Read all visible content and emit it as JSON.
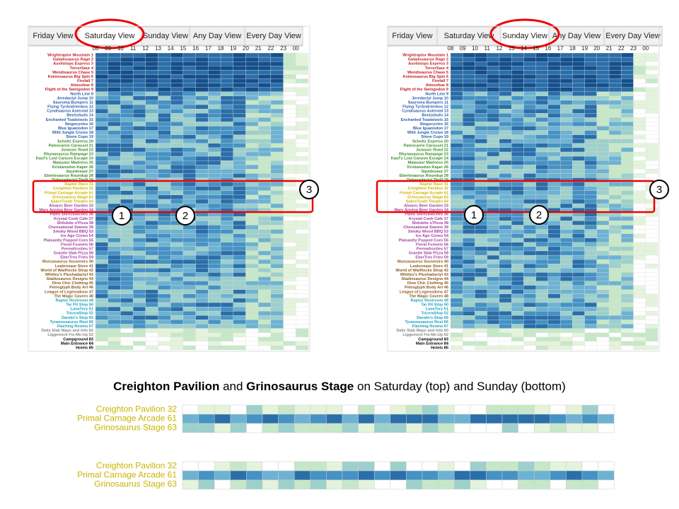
{
  "tabs": [
    "Friday View",
    "Saturday View",
    "Sunday View",
    "Any Day View",
    "Every Day View"
  ],
  "hours": [
    "08",
    "09",
    "10",
    "11",
    "12",
    "13",
    "14",
    "15",
    "16",
    "17",
    "18",
    "19",
    "20",
    "21",
    "22",
    "23",
    "00"
  ],
  "groups": [
    {
      "color": "#c0202a",
      "rows": [
        "Wrightraptor Mountain 1",
        "Galadosaurus Rage 2",
        "Auvilotops Express 3",
        "TerrorSaur 4",
        "Wendisaurus Chase 5",
        "Keimosaurus Big Spin 6",
        "Firefall 7",
        "Atmosfear 8",
        "Flight of the Swingodon 9"
      ]
    },
    {
      "color": "#2a5caa",
      "rows": [
        "North Line 9",
        "Jeredactyl Jump 10",
        "Sauroma Bumpers 11",
        "Flying TyrAndrienkos 12",
        "Cyndisaurus Asteroid 13",
        "Beelzebufo 14",
        "Enchanted Toadstools 15",
        "Stegocycles 16",
        "Blue Iguanodon 17",
        "Wild Jungle Cruise 18",
        "Stone Cups 19"
      ]
    },
    {
      "color": "#3a8a2a",
      "rows": [
        "Scholtz Express 20",
        "Paleocarrie Carousel 21",
        "Jurassic Road 22",
        "Rhynasaurus Rampage 23",
        "Kauf's Lost Canyon Escape 24",
        "Maiasaur Madness 25",
        "Kristanodon Kaper 26",
        "Squidosaur 27",
        "Eberlesaurus Roundup 28",
        "Dykesadactyl Thrill 29"
      ]
    },
    {
      "color": "#c8b400",
      "rows": [
        "Raptor Race 31",
        "Creighton Pavilion 32",
        "Primal Carnage Arcade 61",
        "Grinosaurus Stage 63",
        "SabreTooth Theatre 64"
      ]
    },
    {
      "color": "#a040a0",
      "rows": [
        "Alvarez Beer Garden 33",
        "Mary Anning Beer Garden 34",
        "Paleo Shreckwiches 36",
        "Krystal Cook Cafe 37",
        "Shilobite o'Pizza 38",
        "Chensational Sweets 39",
        "Smoky Wood BBQ 53",
        "Ice Age Cones 54",
        "Plaisantly Popped Corn 55",
        "Floral Funnels 56",
        "Permafrosties 57",
        "Granite Slab Pizza 58",
        "EberTrex Fries 59"
      ]
    },
    {
      "color": "#8a5a20",
      "rows": [
        "Munzasaurus Souvenirs 40",
        "Leabrosaur Store 41",
        "World of WarRocks Shop 42",
        "Whitley's Plushadactyl 43",
        "Stadiosaurus Designs 44",
        "Dino Chic Clothing 45",
        "Petroglyph Body Art 46",
        "League of Legenodons 47",
        "The Magic Cavern 48"
      ]
    },
    {
      "color": "#1aa0c0",
      "rows": [
        "Raptor Restroom 49",
        "Tar Pit Stop 50",
        "LavaTory 51",
        "TriceraStop 52",
        "Darwin's Stop 65",
        "Tyrannosaurus Rest 66",
        "Flaching Rooms 67"
      ]
    },
    {
      "color": "#888888",
      "rows": [
        "Daily Slab Maps and Info 60",
        "Liggement Fix-Me-Up 62"
      ]
    },
    {
      "color": "#000000",
      "rows": [
        "Campground 83",
        "Main Entrance 84",
        "Hotels 85"
      ]
    }
  ],
  "callouts": [
    "1",
    "2",
    "3"
  ],
  "caption": {
    "bold1": "Creighton Pavilion",
    "text1": " and ",
    "bold2": "Grinosaurus Stage",
    "text2": " on Saturday (top) and Sunday (bottom)"
  },
  "zoom_labels": [
    "Creighton Pavilion 32",
    "Primal Carnage Arcade 61",
    "Grinosaurus Stage 63"
  ]
}
